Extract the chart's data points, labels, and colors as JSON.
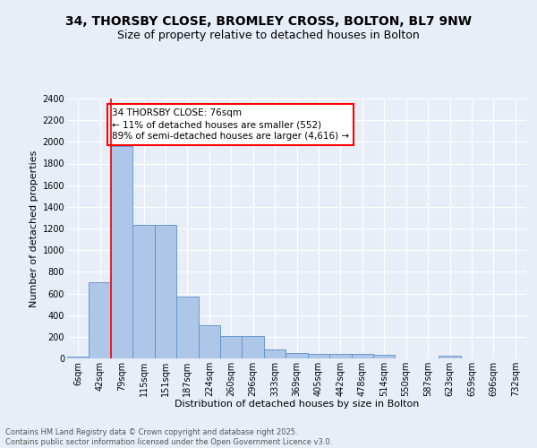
{
  "title_line1": "34, THORSBY CLOSE, BROMLEY CROSS, BOLTON, BL7 9NW",
  "title_line2": "Size of property relative to detached houses in Bolton",
  "xlabel": "Distribution of detached houses by size in Bolton",
  "ylabel": "Number of detached properties",
  "bar_labels": [
    "6sqm",
    "42sqm",
    "79sqm",
    "115sqm",
    "151sqm",
    "187sqm",
    "224sqm",
    "260sqm",
    "296sqm",
    "333sqm",
    "369sqm",
    "405sqm",
    "442sqm",
    "478sqm",
    "514sqm",
    "550sqm",
    "587sqm",
    "623sqm",
    "659sqm",
    "696sqm",
    "732sqm"
  ],
  "bar_values": [
    15,
    700,
    1960,
    1235,
    1235,
    575,
    305,
    205,
    205,
    85,
    50,
    40,
    40,
    40,
    35,
    0,
    0,
    25,
    0,
    0,
    0
  ],
  "bar_color": "#aec6e8",
  "bar_edge_color": "#5b8fc9",
  "vline_color": "red",
  "annotation_text": "34 THORSBY CLOSE: 76sqm\n← 11% of detached houses are smaller (552)\n89% of semi-detached houses are larger (4,616) →",
  "annotation_box_color": "white",
  "annotation_box_edge_color": "red",
  "background_color": "#e8eef8",
  "plot_bg_color": "#e8eef8",
  "ylim": [
    0,
    2400
  ],
  "yticks": [
    0,
    200,
    400,
    600,
    800,
    1000,
    1200,
    1400,
    1600,
    1800,
    2000,
    2200,
    2400
  ],
  "footer_text": "Contains HM Land Registry data © Crown copyright and database right 2025.\nContains public sector information licensed under the Open Government Licence v3.0.",
  "title_fontsize": 10,
  "subtitle_fontsize": 9,
  "axis_label_fontsize": 8,
  "tick_fontsize": 7,
  "annotation_fontsize": 7.5
}
